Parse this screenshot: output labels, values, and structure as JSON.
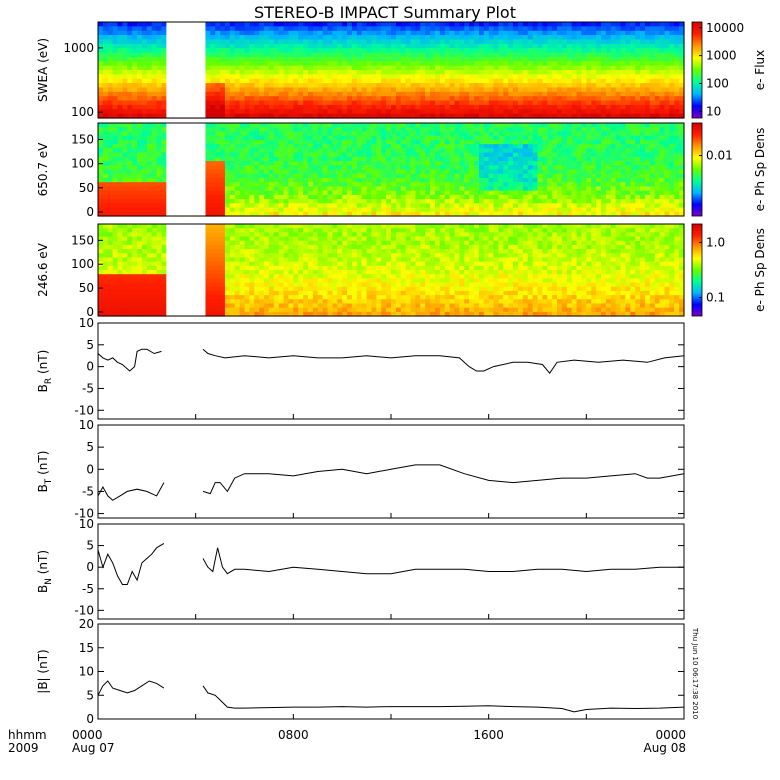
{
  "title": "STEREO-B IMPACT Summary Plot",
  "timestamp_label": "Thu Jun 10 06:17:38 2010",
  "footer": {
    "row1_label": "hhmm",
    "row2_label": "2009",
    "x_ticks": [
      {
        "top": "0000",
        "bottom": "Aug 07",
        "hour": 0
      },
      {
        "top": "0800",
        "bottom": "",
        "hour": 8
      },
      {
        "top": "1600",
        "bottom": "",
        "hour": 16
      },
      {
        "top": "0000",
        "bottom": "Aug 08",
        "hour": 24
      }
    ]
  },
  "colors": {
    "spectrogram_scale": [
      "#7a00c8",
      "#0000ff",
      "#00b4ff",
      "#00ff96",
      "#64ff00",
      "#ffff00",
      "#ff9600",
      "#ff1e00",
      "#d20000"
    ],
    "line": "#000000",
    "data_gap": "#ffffff"
  },
  "chart_data": [
    {
      "type": "heatmap",
      "ylabel": "SWEA (eV)",
      "y_scale": "log",
      "y_ticks": [
        "1000",
        "100"
      ],
      "colorbar": {
        "label": "e- Flux",
        "scale": "log",
        "ticks": [
          "10000",
          "1000",
          "100",
          "10"
        ]
      },
      "x_range_hours": [
        0,
        24
      ],
      "data_gap_hours": [
        2.8,
        4.4
      ]
    },
    {
      "type": "heatmap",
      "ylabel": "650.7 eV",
      "ylim": [
        0,
        180
      ],
      "y_ticks": [
        "150",
        "100",
        "50",
        "0"
      ],
      "colorbar": {
        "label": "e- Ph Sp Dens",
        "scale": "log",
        "ticks": [
          "0.01"
        ]
      },
      "x_range_hours": [
        0,
        24
      ],
      "data_gap_hours": [
        2.8,
        4.4
      ]
    },
    {
      "type": "heatmap",
      "ylabel": "246.6 eV",
      "ylim": [
        0,
        180
      ],
      "y_ticks": [
        "150",
        "100",
        "50",
        "0"
      ],
      "colorbar": {
        "label": "e- Ph Sp Dens",
        "scale": "log",
        "ticks": [
          "1.0",
          "0.1"
        ]
      },
      "x_range_hours": [
        0,
        24
      ],
      "data_gap_hours": [
        2.8,
        4.4
      ]
    },
    {
      "type": "line",
      "ylabel_main": "B",
      "ylabel_sub": "R",
      "ylabel_unit": "(nT)",
      "ylim": [
        -12,
        10
      ],
      "y_ticks": [
        "10",
        "5",
        "0",
        "-5",
        "-10"
      ],
      "x": [
        0,
        0.2,
        0.4,
        0.6,
        0.8,
        1.0,
        1.3,
        1.5,
        1.6,
        1.8,
        2.0,
        2.3,
        2.6,
        4.3,
        4.5,
        4.8,
        5.2,
        6,
        7,
        8,
        9,
        10,
        11,
        12,
        13,
        14,
        14.8,
        15.2,
        15.5,
        15.8,
        16.2,
        17,
        17.6,
        18.2,
        18.5,
        18.8,
        19.5,
        20.5,
        21.5,
        22.5,
        23.2,
        24
      ],
      "values": [
        3,
        2,
        1.5,
        2,
        1,
        0.5,
        -1,
        0,
        3.5,
        4,
        4,
        3,
        3.5,
        4,
        3,
        2.5,
        2,
        2.5,
        2,
        2.5,
        2,
        2,
        2.5,
        2,
        2.5,
        2.5,
        2,
        0,
        -1,
        -1,
        0,
        1,
        1,
        0.5,
        -1.5,
        1,
        1.5,
        1,
        1.5,
        1,
        2,
        2.5
      ]
    },
    {
      "type": "line",
      "ylabel_main": "B",
      "ylabel_sub": "T",
      "ylabel_unit": "(nT)",
      "ylim": [
        -11,
        10
      ],
      "y_ticks": [
        "10",
        "5",
        "0",
        "-5",
        "-10"
      ],
      "x": [
        0,
        0.2,
        0.4,
        0.6,
        0.9,
        1.2,
        1.6,
        2.0,
        2.4,
        2.7,
        4.3,
        4.6,
        4.8,
        5.0,
        5.3,
        5.6,
        6,
        7,
        8,
        9,
        10,
        11,
        12,
        13,
        14,
        15,
        16,
        17,
        18,
        19,
        20,
        21,
        22,
        22.5,
        23,
        24
      ],
      "values": [
        -6,
        -4,
        -6,
        -7,
        -6,
        -5,
        -4.5,
        -5,
        -6,
        -3,
        -5,
        -5.5,
        -3,
        -3,
        -5,
        -2,
        -1,
        -1,
        -1.5,
        -0.5,
        0,
        -1,
        0,
        1,
        1,
        -1,
        -2.5,
        -3,
        -2.5,
        -2,
        -2,
        -1.5,
        -1,
        -2,
        -2,
        -1
      ]
    },
    {
      "type": "line",
      "ylabel_main": "B",
      "ylabel_sub": "N",
      "ylabel_unit": "(nT)",
      "ylim": [
        -12,
        10
      ],
      "y_ticks": [
        "10",
        "5",
        "0",
        "-5",
        "-10"
      ],
      "x": [
        0,
        0.2,
        0.4,
        0.6,
        0.8,
        1.0,
        1.2,
        1.4,
        1.6,
        1.8,
        2.0,
        2.2,
        2.4,
        2.7,
        4.3,
        4.5,
        4.7,
        4.9,
        5.1,
        5.3,
        5.6,
        6,
        7,
        8,
        9,
        10,
        11,
        12,
        13,
        14,
        15,
        16,
        17,
        18,
        19,
        20,
        21,
        22,
        23,
        24
      ],
      "values": [
        4,
        0,
        3,
        1,
        -2,
        -4,
        -4,
        -1,
        -3,
        1,
        2,
        3,
        4.5,
        5.5,
        2,
        0,
        -1,
        4.5,
        0,
        -1.5,
        -0.5,
        -0.5,
        -1,
        0,
        -0.5,
        -1,
        -1.5,
        -1.5,
        -0.5,
        -0.5,
        -0.5,
        -1,
        -1,
        -0.5,
        -0.5,
        -1,
        -0.5,
        -0.5,
        0,
        0
      ]
    },
    {
      "type": "line",
      "ylabel_main": "|B|",
      "ylabel_sub": "",
      "ylabel_unit": "(nT)",
      "ylim": [
        0,
        20
      ],
      "y_ticks": [
        "20",
        "15",
        "10",
        "5",
        "0"
      ],
      "x": [
        0,
        0.2,
        0.4,
        0.6,
        0.9,
        1.2,
        1.5,
        1.8,
        2.1,
        2.4,
        2.7,
        4.3,
        4.5,
        4.8,
        5.0,
        5.3,
        5.6,
        6,
        7,
        8,
        9,
        10,
        11,
        12,
        13,
        14,
        15,
        16,
        17,
        18,
        19,
        19.5,
        20,
        21,
        22,
        23,
        24
      ],
      "values": [
        5,
        7,
        8,
        6.5,
        6,
        5.5,
        6,
        7,
        8,
        7.5,
        6.5,
        7,
        5.5,
        5,
        4,
        2.5,
        2.3,
        2.3,
        2.4,
        2.5,
        2.5,
        2.6,
        2.5,
        2.6,
        2.6,
        2.6,
        2.7,
        2.8,
        2.6,
        2.5,
        2.2,
        1.5,
        2,
        2.3,
        2.2,
        2.3,
        2.5
      ]
    }
  ]
}
